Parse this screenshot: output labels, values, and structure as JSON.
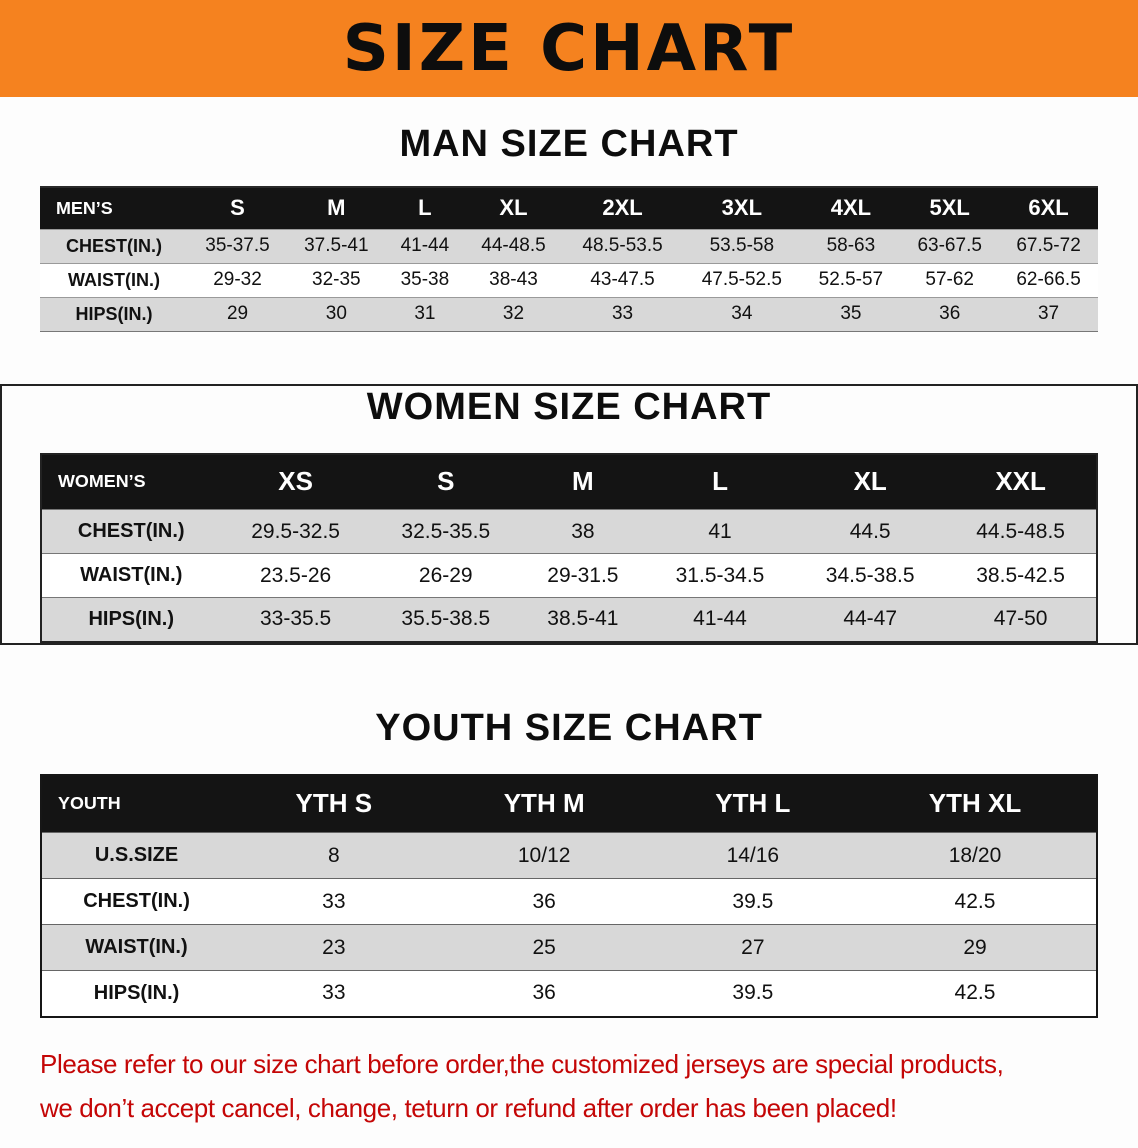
{
  "banner": {
    "title": "SIZE CHART"
  },
  "colors": {
    "banner_bg": "#f5821f",
    "table_header_bg": "#141414",
    "row_alt_bg": "#d8d8d8",
    "footer_text": "#c40606"
  },
  "men": {
    "heading": "MAN SIZE CHART",
    "header": [
      "MEN’S",
      "S",
      "M",
      "L",
      "XL",
      "2XL",
      "3XL",
      "4XL",
      "5XL",
      "6XL"
    ],
    "rows": [
      [
        "CHEST(IN.)",
        "35-37.5",
        "37.5-41",
        "41-44",
        "44-48.5",
        "48.5-53.5",
        "53.5-58",
        "58-63",
        "63-67.5",
        "67.5-72"
      ],
      [
        "WAIST(IN.)",
        "29-32",
        "32-35",
        "35-38",
        "38-43",
        "43-47.5",
        "47.5-52.5",
        "52.5-57",
        "57-62",
        "62-66.5"
      ],
      [
        "HIPS(IN.)",
        "29",
        "30",
        "31",
        "32",
        "33",
        "34",
        "35",
        "36",
        "37"
      ]
    ]
  },
  "women": {
    "heading": "WOMEN SIZE CHART",
    "header": [
      "WOMEN’S",
      "XS",
      "S",
      "M",
      "L",
      "XL",
      "XXL"
    ],
    "rows": [
      [
        "CHEST(IN.)",
        "29.5-32.5",
        "32.5-35.5",
        "38",
        "41",
        "44.5",
        "44.5-48.5"
      ],
      [
        "WAIST(IN.)",
        "23.5-26",
        "26-29",
        "29-31.5",
        "31.5-34.5",
        "34.5-38.5",
        "38.5-42.5"
      ],
      [
        "HIPS(IN.)",
        "33-35.5",
        "35.5-38.5",
        "38.5-41",
        "41-44",
        "44-47",
        "47-50"
      ]
    ]
  },
  "youth": {
    "heading": "YOUTH SIZE CHART",
    "header": [
      "YOUTH",
      "YTH S",
      "YTH M",
      "YTH L",
      "YTH XL"
    ],
    "rows": [
      [
        "U.S.SIZE",
        "8",
        "10/12",
        "14/16",
        "18/20"
      ],
      [
        "CHEST(IN.)",
        "33",
        "36",
        "39.5",
        "42.5"
      ],
      [
        "WAIST(IN.)",
        "23",
        "25",
        "27",
        "29"
      ],
      [
        "HIPS(IN.)",
        "33",
        "36",
        "39.5",
        "42.5"
      ]
    ]
  },
  "footer": {
    "line1": "Please refer to our size chart before order,the customized jerseys are special products,",
    "line2": "we don’t accept cancel, change, teturn or refund after order has been placed!"
  }
}
